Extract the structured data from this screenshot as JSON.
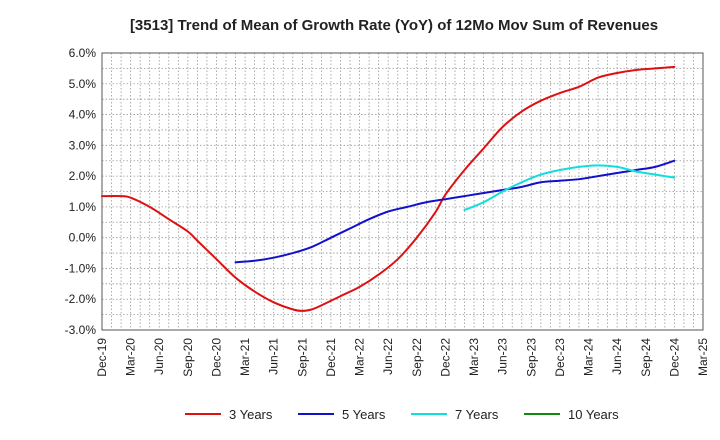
{
  "chart_data": {
    "type": "line",
    "title": "[3513]  Trend of Mean of Growth Rate (YoY) of 12Mo Mov Sum of Revenues",
    "xlabel": "",
    "ylabel": "",
    "ylim": [
      -3.0,
      6.0
    ],
    "y_ticks": [
      {
        "value": 6.0,
        "label": "6.0%"
      },
      {
        "value": 5.0,
        "label": "5.0%"
      },
      {
        "value": 4.0,
        "label": "4.0%"
      },
      {
        "value": 3.0,
        "label": "3.0%"
      },
      {
        "value": 2.0,
        "label": "2.0%"
      },
      {
        "value": 1.0,
        "label": "1.0%"
      },
      {
        "value": 0.0,
        "label": "0.0%"
      },
      {
        "value": -1.0,
        "label": "-1.0%"
      },
      {
        "value": -2.0,
        "label": "-2.0%"
      },
      {
        "value": -3.0,
        "label": "-3.0%"
      }
    ],
    "x_range_months": [
      0,
      63
    ],
    "x_ticks": [
      {
        "m": 0,
        "label": "Dec-19"
      },
      {
        "m": 3,
        "label": "Mar-20"
      },
      {
        "m": 6,
        "label": "Jun-20"
      },
      {
        "m": 9,
        "label": "Sep-20"
      },
      {
        "m": 12,
        "label": "Dec-20"
      },
      {
        "m": 15,
        "label": "Mar-21"
      },
      {
        "m": 18,
        "label": "Jun-21"
      },
      {
        "m": 21,
        "label": "Sep-21"
      },
      {
        "m": 24,
        "label": "Dec-21"
      },
      {
        "m": 27,
        "label": "Mar-22"
      },
      {
        "m": 30,
        "label": "Jun-22"
      },
      {
        "m": 33,
        "label": "Sep-22"
      },
      {
        "m": 36,
        "label": "Dec-22"
      },
      {
        "m": 39,
        "label": "Mar-23"
      },
      {
        "m": 42,
        "label": "Jun-23"
      },
      {
        "m": 45,
        "label": "Sep-23"
      },
      {
        "m": 48,
        "label": "Dec-23"
      },
      {
        "m": 51,
        "label": "Mar-24"
      },
      {
        "m": 54,
        "label": "Jun-24"
      },
      {
        "m": 57,
        "label": "Sep-24"
      },
      {
        "m": 60,
        "label": "Dec-24"
      },
      {
        "m": 63,
        "label": "Mar-25"
      }
    ],
    "grid": true,
    "legend_position": "bottom",
    "series": [
      {
        "name": "3 Years",
        "color": "#dd1111",
        "points": [
          [
            0,
            1.35
          ],
          [
            2,
            1.35
          ],
          [
            3,
            1.3
          ],
          [
            5,
            1.0
          ],
          [
            7,
            0.6
          ],
          [
            9,
            0.2
          ],
          [
            10,
            -0.1
          ],
          [
            12,
            -0.7
          ],
          [
            14,
            -1.3
          ],
          [
            16,
            -1.75
          ],
          [
            18,
            -2.1
          ],
          [
            20,
            -2.33
          ],
          [
            21,
            -2.38
          ],
          [
            22,
            -2.33
          ],
          [
            23,
            -2.2
          ],
          [
            25,
            -1.9
          ],
          [
            27,
            -1.6
          ],
          [
            29,
            -1.2
          ],
          [
            31,
            -0.7
          ],
          [
            33,
            0.0
          ],
          [
            35,
            0.85
          ],
          [
            36,
            1.4
          ],
          [
            38,
            2.2
          ],
          [
            40,
            2.9
          ],
          [
            42,
            3.6
          ],
          [
            44,
            4.1
          ],
          [
            46,
            4.45
          ],
          [
            48,
            4.7
          ],
          [
            50,
            4.9
          ],
          [
            52,
            5.2
          ],
          [
            54,
            5.35
          ],
          [
            56,
            5.45
          ],
          [
            58,
            5.5
          ],
          [
            60,
            5.55
          ]
        ]
      },
      {
        "name": "5 Years",
        "color": "#1111cc",
        "points": [
          [
            14,
            -0.8
          ],
          [
            16,
            -0.75
          ],
          [
            18,
            -0.65
          ],
          [
            20,
            -0.5
          ],
          [
            22,
            -0.3
          ],
          [
            24,
            0.0
          ],
          [
            26,
            0.3
          ],
          [
            28,
            0.6
          ],
          [
            30,
            0.85
          ],
          [
            32,
            1.0
          ],
          [
            34,
            1.15
          ],
          [
            36,
            1.25
          ],
          [
            38,
            1.35
          ],
          [
            40,
            1.45
          ],
          [
            42,
            1.55
          ],
          [
            44,
            1.65
          ],
          [
            46,
            1.8
          ],
          [
            48,
            1.85
          ],
          [
            50,
            1.9
          ],
          [
            52,
            2.0
          ],
          [
            54,
            2.1
          ],
          [
            56,
            2.2
          ],
          [
            58,
            2.3
          ],
          [
            60,
            2.5
          ]
        ]
      },
      {
        "name": "7 Years",
        "color": "#11dddd",
        "points": [
          [
            38,
            0.9
          ],
          [
            40,
            1.15
          ],
          [
            42,
            1.5
          ],
          [
            44,
            1.8
          ],
          [
            46,
            2.05
          ],
          [
            48,
            2.2
          ],
          [
            50,
            2.3
          ],
          [
            52,
            2.35
          ],
          [
            54,
            2.3
          ],
          [
            56,
            2.15
          ],
          [
            58,
            2.05
          ],
          [
            60,
            1.95
          ]
        ]
      },
      {
        "name": "10 Years",
        "color": "#118811",
        "points": []
      }
    ]
  }
}
